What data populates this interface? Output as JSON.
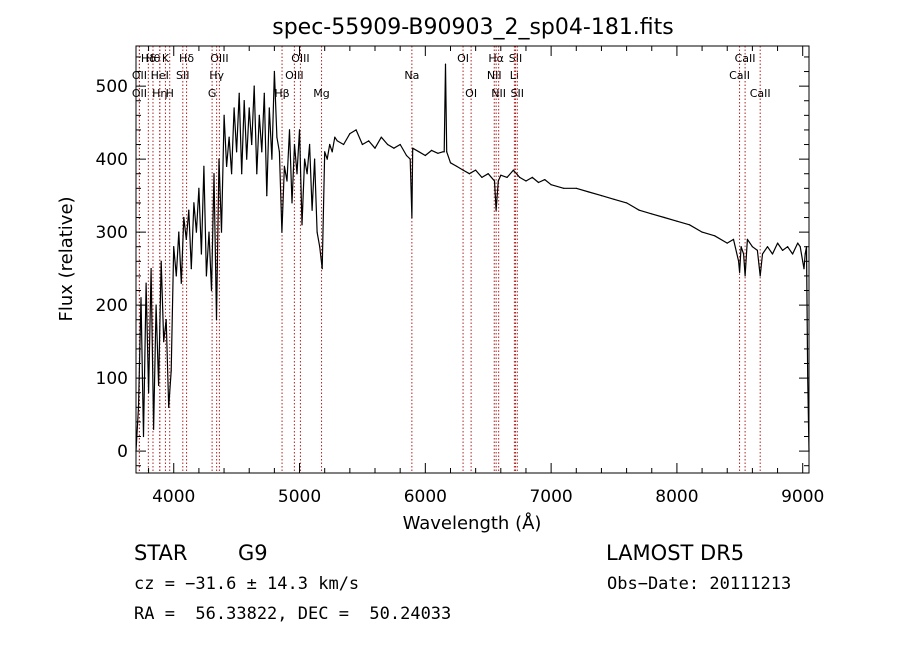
{
  "chart_data": {
    "type": "line",
    "title": "spec-55909-B90903_2_sp04-181.fits",
    "xlabel": "Wavelength (Å)",
    "ylabel": "Flux (relative)",
    "xlim": [
      3700,
      9050
    ],
    "ylim": [
      -30,
      555
    ],
    "x_ticks": [
      4000,
      5000,
      6000,
      7000,
      8000,
      9000
    ],
    "y_ticks": [
      0,
      100,
      200,
      300,
      400,
      500
    ],
    "line_color": "#000000",
    "grid": false,
    "spectral_lines": {
      "color": "#b22222",
      "lines": [
        {
          "label": "Hδ",
          "wavelength": 3798,
          "row": 1
        },
        {
          "label": "OII",
          "wavelength": 3727,
          "row": 2
        },
        {
          "label": "OII",
          "wavelength": 3727,
          "row": 3
        },
        {
          "label": "Hθ",
          "wavelength": 3835,
          "row": 1
        },
        {
          "label": "Hη",
          "wavelength": 3889,
          "row": 3
        },
        {
          "label": "HeI",
          "wavelength": 3889,
          "row": 2
        },
        {
          "label": "K",
          "wavelength": 3934,
          "row": 1
        },
        {
          "label": "H",
          "wavelength": 3968,
          "row": 3
        },
        {
          "label": "SII",
          "wavelength": 4072,
          "row": 2
        },
        {
          "label": "Hδ",
          "wavelength": 4102,
          "row": 1
        },
        {
          "label": "OIII",
          "wavelength": 4363,
          "row": 1
        },
        {
          "label": "Hγ",
          "wavelength": 4341,
          "row": 2
        },
        {
          "label": "G",
          "wavelength": 4305,
          "row": 3
        },
        {
          "label": "Hβ",
          "wavelength": 4861,
          "row": 3
        },
        {
          "label": "OIII",
          "wavelength": 5007,
          "row": 1
        },
        {
          "label": "OIII",
          "wavelength": 4959,
          "row": 2
        },
        {
          "label": "Mg",
          "wavelength": 5175,
          "row": 3
        },
        {
          "label": "Na",
          "wavelength": 5893,
          "row": 2
        },
        {
          "label": "OI",
          "wavelength": 6300,
          "row": 1
        },
        {
          "label": "OI",
          "wavelength": 6364,
          "row": 3
        },
        {
          "label": "Hα",
          "wavelength": 6563,
          "row": 1
        },
        {
          "label": "NII",
          "wavelength": 6548,
          "row": 2
        },
        {
          "label": "NII",
          "wavelength": 6583,
          "row": 3
        },
        {
          "label": "SII",
          "wavelength": 6717,
          "row": 1
        },
        {
          "label": "Li",
          "wavelength": 6708,
          "row": 2
        },
        {
          "label": "SII",
          "wavelength": 6731,
          "row": 3
        },
        {
          "label": "CaII",
          "wavelength": 8542,
          "row": 1
        },
        {
          "label": "CaII",
          "wavelength": 8498,
          "row": 2
        },
        {
          "label": "CaII",
          "wavelength": 8662,
          "row": 3
        }
      ]
    },
    "spectrum": {
      "x": [
        3700,
        3720,
        3740,
        3760,
        3780,
        3800,
        3820,
        3840,
        3860,
        3880,
        3900,
        3920,
        3940,
        3960,
        3980,
        4000,
        4020,
        4040,
        4060,
        4080,
        4100,
        4120,
        4140,
        4160,
        4180,
        4200,
        4220,
        4240,
        4260,
        4280,
        4300,
        4320,
        4340,
        4360,
        4380,
        4400,
        4420,
        4440,
        4460,
        4480,
        4500,
        4520,
        4540,
        4560,
        4580,
        4600,
        4620,
        4640,
        4660,
        4680,
        4700,
        4720,
        4740,
        4760,
        4780,
        4800,
        4820,
        4840,
        4860,
        4880,
        4900,
        4920,
        4940,
        4960,
        4980,
        5000,
        5020,
        5040,
        5060,
        5080,
        5100,
        5120,
        5140,
        5160,
        5180,
        5200,
        5220,
        5240,
        5260,
        5280,
        5300,
        5350,
        5400,
        5450,
        5500,
        5550,
        5600,
        5650,
        5700,
        5750,
        5800,
        5850,
        5880,
        5893,
        5900,
        5950,
        6000,
        6050,
        6100,
        6140,
        6150,
        6160,
        6170,
        6200,
        6250,
        6300,
        6350,
        6400,
        6450,
        6500,
        6550,
        6563,
        6580,
        6600,
        6650,
        6700,
        6750,
        6800,
        6850,
        6900,
        6950,
        7000,
        7100,
        7200,
        7300,
        7400,
        7500,
        7600,
        7700,
        7800,
        7900,
        8000,
        8100,
        8200,
        8300,
        8400,
        8450,
        8490,
        8498,
        8510,
        8530,
        8542,
        8560,
        8600,
        8640,
        8662,
        8680,
        8720,
        8760,
        8800,
        8840,
        8880,
        8920,
        8960,
        8980,
        9000,
        9010,
        9020,
        9030,
        9040,
        9050
      ],
      "y": [
        0,
        60,
        210,
        20,
        230,
        80,
        250,
        30,
        200,
        90,
        260,
        150,
        180,
        60,
        110,
        280,
        240,
        300,
        230,
        320,
        290,
        330,
        250,
        340,
        300,
        360,
        270,
        390,
        240,
        300,
        220,
        380,
        180,
        400,
        300,
        460,
        390,
        430,
        380,
        470,
        410,
        490,
        380,
        480,
        400,
        470,
        420,
        500,
        380,
        460,
        410,
        490,
        350,
        470,
        400,
        520,
        430,
        410,
        300,
        390,
        370,
        440,
        340,
        420,
        380,
        440,
        310,
        400,
        380,
        420,
        330,
        400,
        300,
        280,
        250,
        410,
        400,
        420,
        410,
        430,
        425,
        420,
        435,
        440,
        420,
        425,
        415,
        430,
        420,
        415,
        420,
        405,
        400,
        320,
        415,
        410,
        405,
        412,
        408,
        410,
        410,
        530,
        410,
        395,
        390,
        385,
        380,
        385,
        375,
        380,
        370,
        330,
        370,
        378,
        375,
        385,
        375,
        370,
        375,
        368,
        372,
        365,
        360,
        360,
        355,
        350,
        345,
        340,
        330,
        325,
        320,
        315,
        310,
        300,
        295,
        285,
        290,
        260,
        245,
        280,
        270,
        240,
        290,
        280,
        275,
        240,
        270,
        280,
        270,
        285,
        275,
        280,
        270,
        285,
        280,
        260,
        250,
        270,
        280,
        100,
        0
      ]
    }
  },
  "footer": {
    "object_class": "STAR",
    "subclass": "G9",
    "survey": "LAMOST DR5",
    "redshift": "cz = −31.6 ± 14.3 km/s",
    "obs_date": "Obs−Date: 20111213",
    "coords": "RA =  56.33822, DEC =  50.24033"
  }
}
